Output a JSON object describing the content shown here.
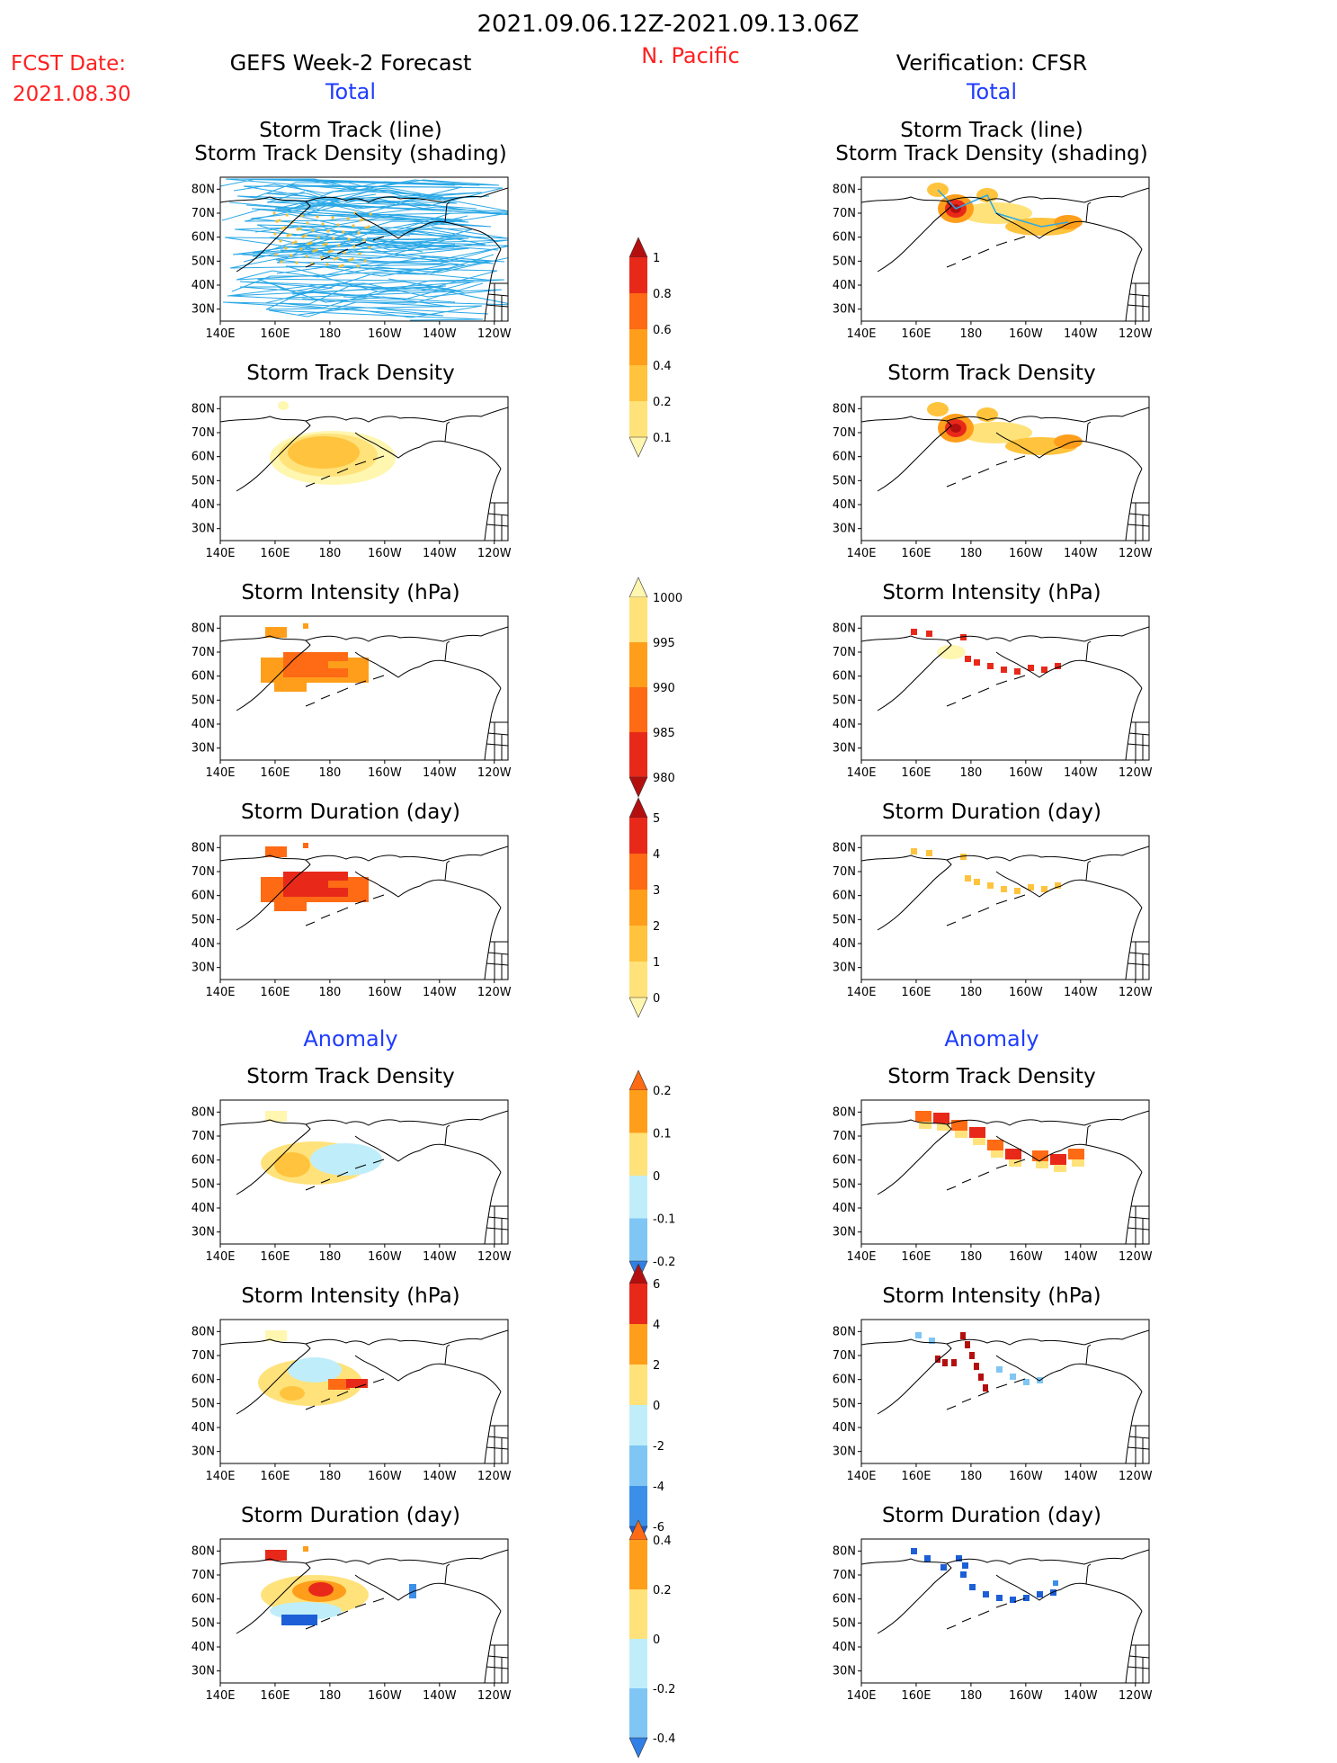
{
  "header": {
    "date_range": "2021.09.06.12Z-2021.09.13.06Z",
    "fcst_label": "FCST Date:",
    "fcst_date": "2021.08.30",
    "left_title": "GEFS Week-2 Forecast",
    "region": "N. Pacific",
    "right_title": "Verification: CFSR"
  },
  "sections": {
    "total": "Total",
    "anomaly": "Anomaly"
  },
  "panel_titles": {
    "track_line": "Storm Track (line)",
    "track_shading": "Storm Track Density (shading)",
    "density": "Storm Track Density",
    "intensity": "Storm Intensity (hPa)",
    "duration": "Storm Duration (day)"
  },
  "axes": {
    "lon_ticks": [
      "140E",
      "160E",
      "180",
      "160W",
      "140W",
      "120W"
    ],
    "lat_ticks": [
      "80N",
      "70N",
      "60N",
      "50N",
      "40N",
      "30N"
    ]
  },
  "colorbars": {
    "density_total": {
      "labels": [
        "1",
        "0.8",
        "0.6",
        "0.4",
        "0.2",
        "0.1"
      ]
    },
    "intensity_total": {
      "labels": [
        "1000",
        "995",
        "990",
        "985",
        "980"
      ]
    },
    "duration_total": {
      "labels": [
        "5",
        "4",
        "3",
        "2",
        "1",
        "0"
      ]
    },
    "density_anom": {
      "labels": [
        "0.2",
        "0.1",
        "0",
        "-0.1",
        "-0.2"
      ]
    },
    "intensity_anom": {
      "labels": [
        "6",
        "4",
        "2",
        "0",
        "-2",
        "-4",
        "-6"
      ]
    },
    "duration_anom": {
      "labels": [
        "0.4",
        "0.2",
        "0",
        "-0.2",
        "-0.4"
      ]
    }
  },
  "colors": {
    "title_red": "#ff2020",
    "section_blue": "#1f3cff",
    "track_line": "#2aa8e6",
    "land_line": "#000000"
  }
}
